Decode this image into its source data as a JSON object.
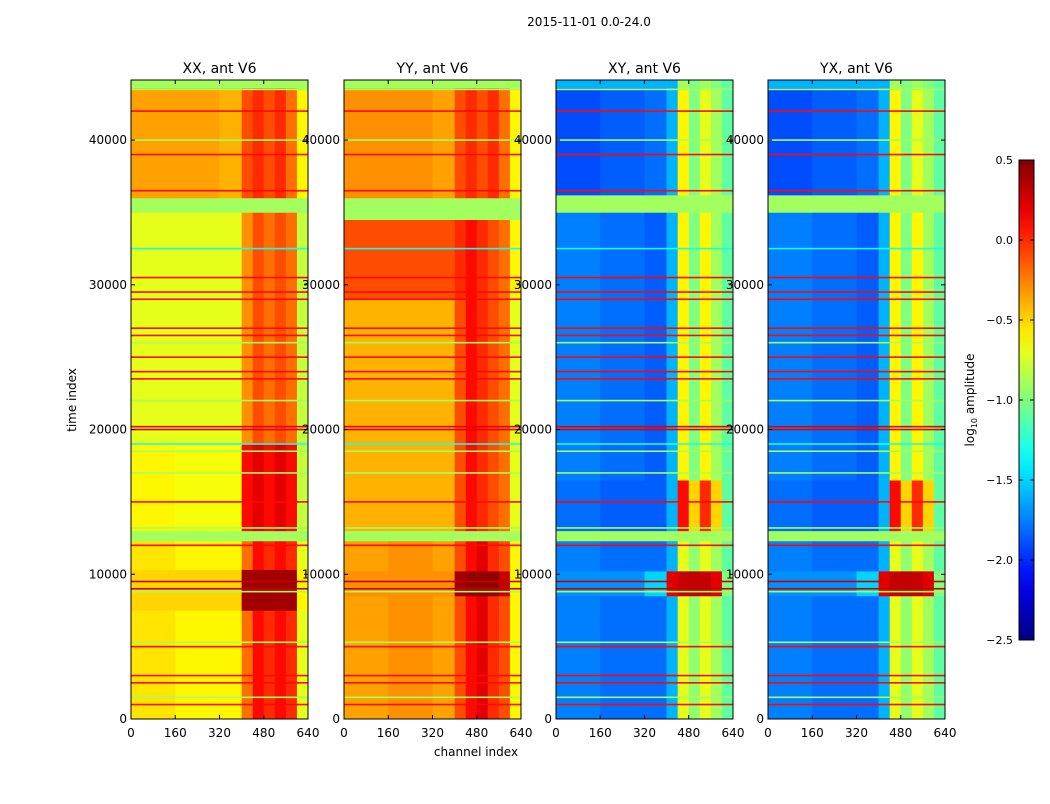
{
  "chart_data": {
    "type": "heatmap",
    "title": "2015-11-01 0.0-24.0",
    "xlabel": "channel index",
    "ylabel": "time index",
    "xlim": [
      0,
      640
    ],
    "ylim": [
      0,
      44150
    ],
    "xticks": [
      "0",
      "160",
      "320",
      "480",
      "640"
    ],
    "xtick_values": [
      0,
      160,
      320,
      480,
      640
    ],
    "yticks": [
      "0",
      "10000",
      "20000",
      "30000",
      "40000"
    ],
    "ytick_values": [
      0,
      10000,
      20000,
      30000,
      40000
    ],
    "channel_edges": [
      0,
      160,
      320,
      400,
      440,
      480,
      520,
      560,
      600,
      640
    ],
    "colorbar": {
      "label": "log₁₀ amplitude",
      "label_base": "log",
      "label_sub": "10",
      "label_rest": " amplitude",
      "colormap": "jet",
      "range": [
        -2.5,
        0.5
      ],
      "ticks": [
        "0.5",
        "0.0",
        "−0.5",
        "−1.0",
        "−1.5",
        "−2.0",
        "−2.5"
      ],
      "tick_values": [
        0.5,
        0.0,
        -0.5,
        -1.0,
        -1.5,
        -2.0,
        -2.5
      ]
    },
    "panels": [
      {
        "title": "XX, ant V6",
        "segments": [
          {
            "t": [
              0,
              12300
            ],
            "values": [
              -0.55,
              -0.6,
              -0.6,
              -0.2,
              0.1,
              0.0,
              0.1,
              0.0,
              -0.7
            ]
          },
          {
            "t": [
              7500,
              10300
            ],
            "values": [
              -0.5,
              -0.5,
              -0.5,
              0.4,
              0.4,
              0.4,
              0.4,
              0.4,
              -0.6
            ]
          },
          {
            "t": [
              12300,
              13000
            ],
            "values": [
              -0.9,
              -0.9,
              -0.9,
              -0.9,
              -0.9,
              -0.9,
              -0.9,
              -0.9,
              -0.9
            ]
          },
          {
            "t": [
              13000,
              19000
            ],
            "values": [
              -0.6,
              -0.65,
              -0.65,
              0.1,
              0.2,
              0.1,
              0.2,
              0.1,
              -0.8
            ]
          },
          {
            "t": [
              19000,
              35000
            ],
            "values": [
              -0.7,
              -0.7,
              -0.7,
              -0.3,
              -0.1,
              -0.2,
              -0.1,
              -0.2,
              -0.8
            ]
          },
          {
            "t": [
              35000,
              36000
            ],
            "values": [
              -0.9,
              -0.9,
              -0.9,
              -0.9,
              -0.9,
              -0.9,
              -0.9,
              -0.9,
              -0.9
            ]
          },
          {
            "t": [
              36000,
              43600
            ],
            "values": [
              -0.35,
              -0.35,
              -0.4,
              -0.1,
              0.0,
              -0.1,
              0.0,
              -0.2,
              -0.6
            ]
          },
          {
            "t": [
              43600,
              44150
            ],
            "values": [
              -0.9,
              -0.9,
              -0.9,
              -0.9,
              -0.9,
              -0.9,
              -0.9,
              -0.9,
              -0.9
            ]
          }
        ]
      },
      {
        "title": "YY, ant V6",
        "segments": [
          {
            "t": [
              0,
              12300
            ],
            "values": [
              -0.35,
              -0.3,
              -0.35,
              -0.1,
              0.1,
              0.2,
              0.0,
              -0.1,
              -0.6
            ]
          },
          {
            "t": [
              8500,
              10200
            ],
            "values": [
              -0.3,
              -0.3,
              -0.3,
              0.4,
              0.45,
              0.45,
              0.45,
              0.3,
              -0.6
            ]
          },
          {
            "t": [
              12300,
              13000
            ],
            "values": [
              -0.9,
              -0.9,
              -0.9,
              -0.9,
              -0.9,
              -0.9,
              -0.9,
              -0.9,
              -0.9
            ]
          },
          {
            "t": [
              13000,
              29000
            ],
            "values": [
              -0.4,
              -0.4,
              -0.4,
              -0.1,
              0.1,
              0.0,
              -0.1,
              -0.2,
              -0.7
            ]
          },
          {
            "t": [
              29000,
              34500
            ],
            "values": [
              -0.1,
              -0.1,
              -0.1,
              0.0,
              0.1,
              0.0,
              -0.1,
              -0.2,
              -0.6
            ]
          },
          {
            "t": [
              34500,
              36000
            ],
            "values": [
              -0.9,
              -0.9,
              -0.9,
              -0.9,
              -0.9,
              -0.9,
              -0.9,
              -0.9,
              -0.9
            ]
          },
          {
            "t": [
              36000,
              43600
            ],
            "values": [
              -0.3,
              -0.3,
              -0.35,
              -0.1,
              0.0,
              -0.1,
              0.0,
              -0.2,
              -0.6
            ]
          },
          {
            "t": [
              43600,
              44150
            ],
            "values": [
              -0.9,
              -0.9,
              -0.9,
              -0.9,
              -0.9,
              -0.9,
              -0.9,
              -0.9,
              -0.9
            ]
          }
        ]
      },
      {
        "title": "XY, ant V6",
        "segments": [
          {
            "t": [
              0,
              12300
            ],
            "values": [
              -1.75,
              -1.8,
              -1.8,
              -1.6,
              -0.7,
              -0.95,
              -0.7,
              -0.9,
              -1.1
            ]
          },
          {
            "t": [
              8500,
              10200
            ],
            "values": [
              -1.7,
              -1.7,
              -1.5,
              0.2,
              0.3,
              0.3,
              0.3,
              0.2,
              -1.0
            ]
          },
          {
            "t": [
              12300,
              13000
            ],
            "values": [
              -0.9,
              -0.9,
              -0.9,
              -0.9,
              -0.9,
              -0.9,
              -0.9,
              -0.9,
              -0.9
            ]
          },
          {
            "t": [
              13000,
              16500
            ],
            "values": [
              -1.8,
              -1.85,
              -1.85,
              -1.6,
              0.1,
              -0.5,
              0.0,
              -0.5,
              -1.1
            ]
          },
          {
            "t": [
              16500,
              35000
            ],
            "values": [
              -1.75,
              -1.8,
              -1.85,
              -1.6,
              -0.6,
              -1.0,
              -0.6,
              -0.9,
              -1.1
            ]
          },
          {
            "t": [
              35000,
              36200
            ],
            "values": [
              -0.9,
              -0.9,
              -0.9,
              -0.9,
              -0.9,
              -0.9,
              -0.9,
              -0.9,
              -0.9
            ]
          },
          {
            "t": [
              36200,
              43600
            ],
            "values": [
              -1.9,
              -1.85,
              -1.8,
              -1.6,
              -0.6,
              -1.0,
              -0.7,
              -0.9,
              -1.1
            ]
          },
          {
            "t": [
              43600,
              44150
            ],
            "values": [
              -1.6,
              -1.6,
              -1.6,
              -1.6,
              -0.9,
              -1.0,
              -0.9,
              -1.0,
              -1.1
            ]
          }
        ]
      },
      {
        "title": "YX, ant V6",
        "segments": [
          {
            "t": [
              0,
              12300
            ],
            "values": [
              -1.75,
              -1.8,
              -1.8,
              -1.6,
              -0.7,
              -0.95,
              -0.7,
              -0.9,
              -1.1
            ]
          },
          {
            "t": [
              8500,
              10200
            ],
            "values": [
              -1.7,
              -1.7,
              -1.5,
              0.2,
              0.3,
              0.3,
              0.3,
              0.2,
              -1.0
            ]
          },
          {
            "t": [
              12300,
              13000
            ],
            "values": [
              -0.9,
              -0.9,
              -0.9,
              -0.9,
              -0.9,
              -0.9,
              -0.9,
              -0.9,
              -0.9
            ]
          },
          {
            "t": [
              13000,
              16500
            ],
            "values": [
              -1.8,
              -1.85,
              -1.85,
              -1.6,
              0.1,
              -0.5,
              0.0,
              -0.5,
              -1.1
            ]
          },
          {
            "t": [
              16500,
              35000
            ],
            "values": [
              -1.75,
              -1.8,
              -1.85,
              -1.6,
              -0.6,
              -1.0,
              -0.6,
              -0.9,
              -1.1
            ]
          },
          {
            "t": [
              35000,
              36200
            ],
            "values": [
              -0.9,
              -0.9,
              -0.9,
              -0.9,
              -0.9,
              -0.9,
              -0.9,
              -0.9,
              -0.9
            ]
          },
          {
            "t": [
              36200,
              43600
            ],
            "values": [
              -1.9,
              -1.85,
              -1.8,
              -1.6,
              -0.6,
              -1.0,
              -0.7,
              -0.9,
              -1.1
            ]
          },
          {
            "t": [
              43600,
              44150
            ],
            "values": [
              -1.6,
              -1.6,
              -1.6,
              -1.6,
              -0.9,
              -1.0,
              -0.9,
              -1.0,
              -1.1
            ]
          }
        ]
      }
    ],
    "flagged_rows": [
      {
        "t": 1000,
        "value": 0.1
      },
      {
        "t": 1500,
        "value": -0.9
      },
      {
        "t": 2500,
        "value": 0.1
      },
      {
        "t": 3000,
        "value": 0.1
      },
      {
        "t": 5000,
        "value": 0.1
      },
      {
        "t": 5300,
        "value": -0.9
      },
      {
        "t": 8800,
        "value": -0.9
      },
      {
        "t": 9000,
        "value": 0.3
      },
      {
        "t": 9500,
        "value": 0.3
      },
      {
        "t": 12000,
        "value": 0.1
      },
      {
        "t": 13200,
        "value": -0.9
      },
      {
        "t": 15000,
        "value": 0.1
      },
      {
        "t": 17000,
        "value": -0.9
      },
      {
        "t": 18500,
        "value": -0.9
      },
      {
        "t": 19000,
        "value": -1.3
      },
      {
        "t": 20000,
        "value": 0.2
      },
      {
        "t": 20200,
        "value": 0.2
      },
      {
        "t": 22000,
        "value": -0.9
      },
      {
        "t": 23500,
        "value": 0.1
      },
      {
        "t": 24000,
        "value": 0.1
      },
      {
        "t": 25000,
        "value": 0.1
      },
      {
        "t": 26000,
        "value": -0.9
      },
      {
        "t": 26500,
        "value": 0.1
      },
      {
        "t": 27000,
        "value": 0.1
      },
      {
        "t": 29000,
        "value": 0.1
      },
      {
        "t": 29500,
        "value": 0.1
      },
      {
        "t": 30500,
        "value": 0.1
      },
      {
        "t": 32500,
        "value": -1.3
      },
      {
        "t": 35200,
        "value": -0.9
      },
      {
        "t": 36500,
        "value": 0.1
      },
      {
        "t": 39000,
        "value": 0.1
      },
      {
        "t": 40000,
        "value": -0.9
      },
      {
        "t": 42000,
        "value": 0.1
      },
      {
        "t": 43500,
        "value": -0.9
      }
    ]
  }
}
